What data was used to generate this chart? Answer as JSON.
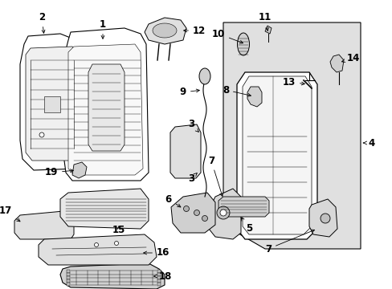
{
  "bg_color": "#ffffff",
  "line_color": "#000000",
  "fill_light": "#e8e8e8",
  "fill_mid": "#d0d0d0",
  "fill_white": "#ffffff",
  "font_size": 8.5,
  "font_bold": true
}
